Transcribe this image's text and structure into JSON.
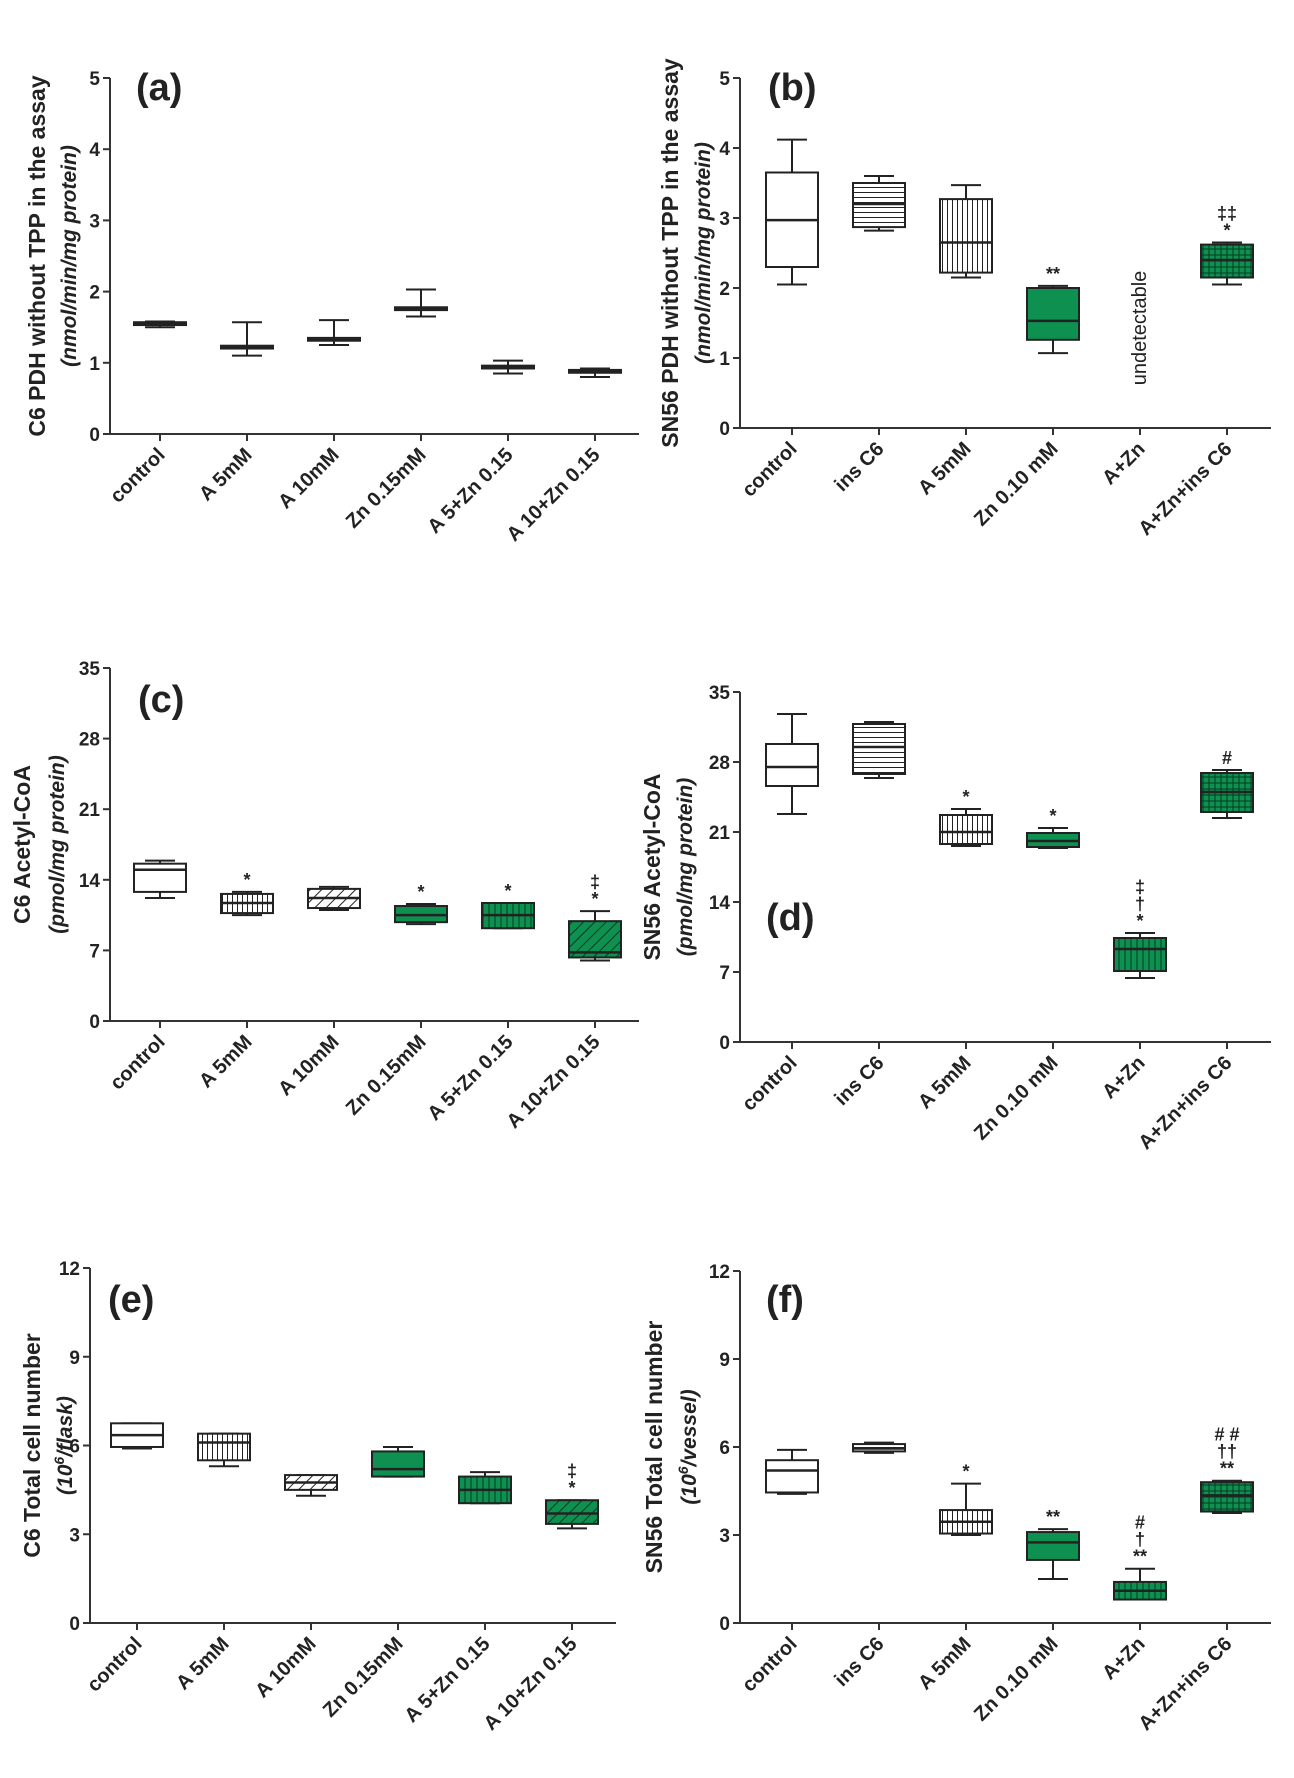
{
  "colors": {
    "green": "#0e9150",
    "dark": "#222222",
    "axis": "#333333"
  },
  "chart_data": [
    {
      "panel": "(a)",
      "type": "box",
      "ylabel": "C6 PDH without TPP in the assay",
      "yunit": "(nmol/min/mg protein)",
      "ylim": [
        0,
        5
      ],
      "yticks": [
        0,
        1,
        2,
        3,
        4,
        5
      ],
      "ytick_labels": [
        "0",
        "1",
        "2",
        "3",
        "4",
        "5"
      ],
      "categories": [
        "control",
        "A 5mM",
        "A 10mM",
        "Zn 0.15mM",
        "A 5+Zn 0.15",
        "A 10+Zn 0.15"
      ],
      "boxes": [
        {
          "min": 1.5,
          "q1": 1.53,
          "median": 1.55,
          "q3": 1.57,
          "max": 1.58,
          "fill": "white"
        },
        {
          "min": 1.1,
          "q1": 1.2,
          "median": 1.22,
          "q3": 1.24,
          "max": 1.57,
          "fill": "white"
        },
        {
          "min": 1.25,
          "q1": 1.31,
          "median": 1.33,
          "q3": 1.35,
          "max": 1.6,
          "fill": "white"
        },
        {
          "min": 1.65,
          "q1": 1.74,
          "median": 1.76,
          "q3": 1.78,
          "max": 2.03,
          "fill": "white"
        },
        {
          "min": 0.85,
          "q1": 0.92,
          "median": 0.94,
          "q3": 0.96,
          "max": 1.03,
          "fill": "white"
        },
        {
          "min": 0.8,
          "q1": 0.86,
          "median": 0.88,
          "q3": 0.9,
          "max": 0.92,
          "fill": "white"
        }
      ],
      "annotations": [
        "",
        "",
        "",
        "",
        "",
        ""
      ]
    },
    {
      "panel": "(b)",
      "type": "box",
      "ylabel": "SN56 PDH without TPP in the assay",
      "yunit": "(nmol/min/mg protein)",
      "ylim": [
        0,
        5
      ],
      "yticks": [
        0,
        1,
        2,
        3,
        4,
        5
      ],
      "ytick_labels": [
        "0",
        "1",
        "2",
        "3",
        "4",
        "5"
      ],
      "categories": [
        "control",
        "ins C6",
        "A 5mM",
        "Zn 0.10 mM",
        "A+Zn",
        "A+Zn+ins C6"
      ],
      "boxes": [
        {
          "min": 2.05,
          "q1": 2.3,
          "median": 2.97,
          "q3": 3.65,
          "max": 4.12,
          "fill": "white"
        },
        {
          "min": 2.82,
          "q1": 2.87,
          "median": 3.2,
          "q3": 3.5,
          "max": 3.6,
          "fill": "hstripe"
        },
        {
          "min": 2.15,
          "q1": 2.22,
          "median": 2.65,
          "q3": 3.27,
          "max": 3.47,
          "fill": "vstripe"
        },
        {
          "min": 1.07,
          "q1": 1.26,
          "median": 1.53,
          "q3": 2.0,
          "max": 2.03,
          "fill": "green"
        },
        null,
        {
          "min": 2.05,
          "q1": 2.15,
          "median": 2.4,
          "q3": 2.62,
          "max": 2.65,
          "fill": "greengrid"
        }
      ],
      "annotations": [
        "",
        "",
        "",
        "**",
        "",
        "‡‡\n*"
      ],
      "missing_label": "undetectable"
    },
    {
      "panel": "(c)",
      "type": "box",
      "ylabel": "C6 Acetyl-CoA",
      "yunit": "(pmol/mg protein)",
      "ylim": [
        0,
        35
      ],
      "yticks": [
        0,
        7,
        14,
        21,
        28,
        35
      ],
      "ytick_labels": [
        "0",
        "7",
        "14",
        "21",
        "28",
        "35"
      ],
      "categories": [
        "control",
        "A 5mM",
        "A 10mM",
        "Zn 0.15mM",
        "A 5+Zn 0.15",
        "A 10+Zn 0.15"
      ],
      "boxes": [
        {
          "min": 12.2,
          "q1": 12.8,
          "median": 15.0,
          "q3": 15.6,
          "max": 15.9,
          "fill": "white"
        },
        {
          "min": 10.5,
          "q1": 10.7,
          "median": 11.7,
          "q3": 12.6,
          "max": 12.8,
          "fill": "vstripe"
        },
        {
          "min": 11.0,
          "q1": 11.2,
          "median": 12.2,
          "q3": 13.1,
          "max": 13.3,
          "fill": "diag"
        },
        {
          "min": 9.6,
          "q1": 9.8,
          "median": 10.5,
          "q3": 11.4,
          "max": 11.6,
          "fill": "green"
        },
        {
          "min": 9.2,
          "q1": 9.2,
          "median": 10.5,
          "q3": 11.7,
          "max": 11.7,
          "fill": "greenvstripe"
        },
        {
          "min": 6.0,
          "q1": 6.3,
          "median": 6.8,
          "q3": 9.9,
          "max": 10.9,
          "fill": "greendiag"
        }
      ],
      "annotations": [
        "",
        "*",
        "",
        "*",
        "*",
        "‡\n*"
      ]
    },
    {
      "panel": "(d)",
      "type": "box",
      "ylabel": "SN56 Acetyl-CoA",
      "yunit": "(pmol/mg protein)",
      "ylim": [
        0,
        35
      ],
      "yticks": [
        0,
        7,
        14,
        21,
        28,
        35
      ],
      "ytick_labels": [
        "0",
        "7",
        "14",
        "21",
        "28",
        "35"
      ],
      "categories": [
        "control",
        "ins C6",
        "A 5mM",
        "Zn 0.10 mM",
        "A+Zn",
        "A+Zn+ins C6"
      ],
      "boxes": [
        {
          "min": 22.8,
          "q1": 25.6,
          "median": 27.5,
          "q3": 29.8,
          "max": 32.8,
          "fill": "white"
        },
        {
          "min": 26.4,
          "q1": 26.8,
          "median": 29.5,
          "q3": 31.8,
          "max": 32.0,
          "fill": "hstripe"
        },
        {
          "min": 19.6,
          "q1": 19.8,
          "median": 21.0,
          "q3": 22.7,
          "max": 23.3,
          "fill": "vstripe"
        },
        {
          "min": 19.4,
          "q1": 19.5,
          "median": 20.1,
          "q3": 20.9,
          "max": 21.4,
          "fill": "green"
        },
        {
          "min": 6.4,
          "q1": 7.1,
          "median": 9.3,
          "q3": 10.4,
          "max": 10.9,
          "fill": "greenvstripe"
        },
        {
          "min": 22.4,
          "q1": 23.0,
          "median": 25.0,
          "q3": 26.9,
          "max": 27.2,
          "fill": "greengrid"
        }
      ],
      "annotations": [
        "",
        "",
        "*",
        "*",
        "‡\n†\n*",
        "#"
      ]
    },
    {
      "panel": "(e)",
      "type": "box",
      "ylabel": "C6 Total cell number",
      "yunit_base": "(10",
      "yunit_sup": "6",
      "yunit_rest": "/flask)",
      "ylim": [
        0,
        12
      ],
      "yticks": [
        0,
        3,
        6,
        9,
        12
      ],
      "ytick_labels": [
        "0",
        "3",
        "6",
        "9",
        "12"
      ],
      "categories": [
        "control",
        "A 5mM",
        "A 10mM",
        "Zn 0.15mM",
        "A 5+Zn 0.15",
        "A 10+Zn 0.15"
      ],
      "boxes": [
        {
          "min": 5.9,
          "q1": 5.95,
          "median": 6.35,
          "q3": 6.75,
          "max": 6.75,
          "fill": "white"
        },
        {
          "min": 5.3,
          "q1": 5.5,
          "median": 6.1,
          "q3": 6.4,
          "max": 6.4,
          "fill": "vstripe"
        },
        {
          "min": 4.3,
          "q1": 4.5,
          "median": 4.75,
          "q3": 5.0,
          "max": 5.0,
          "fill": "diag"
        },
        {
          "min": 4.95,
          "q1": 4.95,
          "median": 5.2,
          "q3": 5.8,
          "max": 5.95,
          "fill": "green"
        },
        {
          "min": 4.05,
          "q1": 4.05,
          "median": 4.5,
          "q3": 4.95,
          "max": 5.1,
          "fill": "greenvstripe"
        },
        {
          "min": 3.2,
          "q1": 3.35,
          "median": 3.7,
          "q3": 4.15,
          "max": 4.15,
          "fill": "greendiag"
        }
      ],
      "annotations": [
        "",
        "",
        "",
        "",
        "",
        "‡\n*"
      ]
    },
    {
      "panel": "(f)",
      "type": "box",
      "ylabel": "SN56 Total cell number",
      "yunit_base": "(10",
      "yunit_sup": "6",
      "yunit_rest": "/vessel)",
      "ylim": [
        0,
        12
      ],
      "yticks": [
        0,
        3,
        6,
        9,
        12
      ],
      "ytick_labels": [
        "0",
        "3",
        "6",
        "9",
        "12"
      ],
      "categories": [
        "control",
        "ins C6",
        "A 5mM",
        "Zn 0.10 mM",
        "A+Zn",
        "A+Zn+ins C6"
      ],
      "boxes": [
        {
          "min": 4.4,
          "q1": 4.45,
          "median": 5.2,
          "q3": 5.55,
          "max": 5.9,
          "fill": "white"
        },
        {
          "min": 5.8,
          "q1": 5.85,
          "median": 5.95,
          "q3": 6.1,
          "max": 6.15,
          "fill": "hstripe"
        },
        {
          "min": 3.0,
          "q1": 3.05,
          "median": 3.45,
          "q3": 3.85,
          "max": 4.75,
          "fill": "vstripe"
        },
        {
          "min": 1.5,
          "q1": 2.15,
          "median": 2.75,
          "q3": 3.1,
          "max": 3.2,
          "fill": "green"
        },
        {
          "min": 0.8,
          "q1": 0.8,
          "median": 1.1,
          "q3": 1.4,
          "max": 1.85,
          "fill": "greenvstripe"
        },
        {
          "min": 3.75,
          "q1": 3.8,
          "median": 4.35,
          "q3": 4.8,
          "max": 4.85,
          "fill": "greengrid"
        }
      ],
      "annotations": [
        "",
        "",
        "*",
        "**",
        "#\n†\n**",
        "# #\n††\n**"
      ]
    }
  ]
}
